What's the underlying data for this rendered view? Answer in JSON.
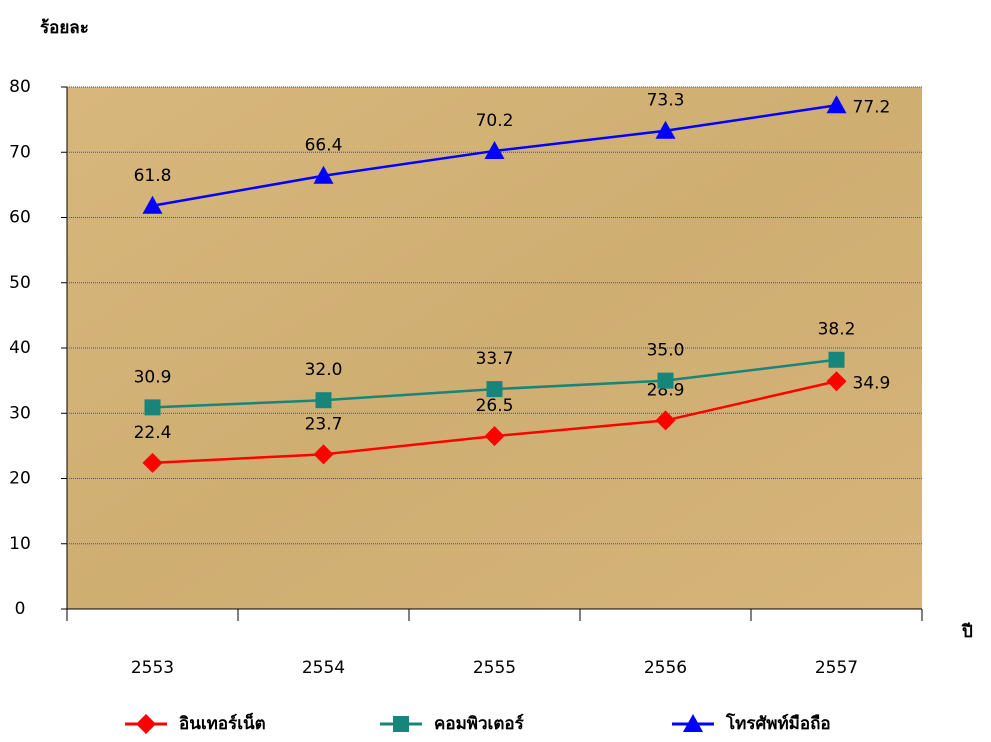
{
  "chart_data": {
    "type": "line",
    "y_label": "ร้อยละ",
    "x_label": "ปี",
    "categories": [
      "2553",
      "2554",
      "2555",
      "2556",
      "2557"
    ],
    "series": [
      {
        "name": "อินเทอร์เน็ต",
        "color": "#ff0000",
        "marker": "diamond",
        "values": [
          22.4,
          23.7,
          26.5,
          28.9,
          34.9
        ],
        "value_labels": [
          "22.4",
          "23.7",
          "26.5",
          "28.9",
          "34.9"
        ]
      },
      {
        "name": "คอมพิวเตอร์",
        "color": "#17857a",
        "marker": "square",
        "values": [
          30.9,
          32.0,
          33.7,
          35.0,
          38.2
        ],
        "value_labels": [
          "30.9",
          "32.0",
          "33.7",
          "35.0",
          "38.2"
        ]
      },
      {
        "name": "โทรศัพท์มือถือ",
        "color": "#0000ff",
        "marker": "triangle",
        "values": [
          61.8,
          66.4,
          70.2,
          73.3,
          77.2
        ],
        "value_labels": [
          "61.8",
          "66.4",
          "70.2",
          "73.3",
          "77.2"
        ]
      }
    ],
    "ylim": [
      0,
      80
    ],
    "yticks": [
      0,
      10,
      20,
      30,
      40,
      50,
      60,
      70,
      80
    ],
    "grid": true,
    "legend": "bottom"
  }
}
